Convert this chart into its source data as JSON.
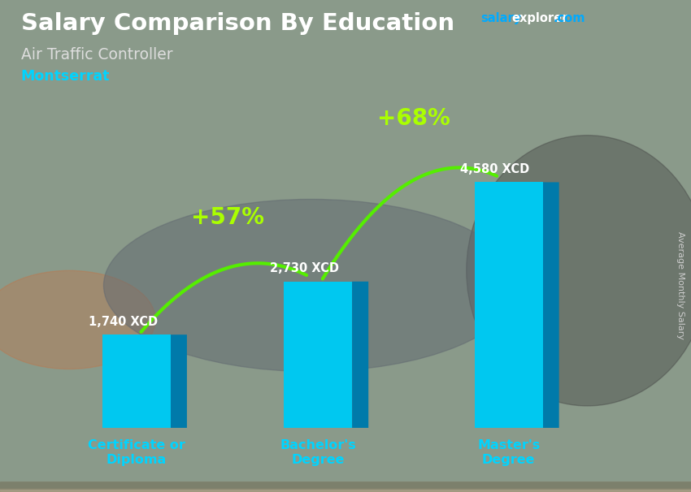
{
  "title": "Salary Comparison By Education",
  "subtitle": "Air Traffic Controller",
  "location": "Montserrat",
  "location_color": "#00d4ff",
  "categories": [
    "Certificate or\nDiploma",
    "Bachelor's\nDegree",
    "Master's\nDegree"
  ],
  "values": [
    1740,
    2730,
    4580
  ],
  "value_labels": [
    "1,740 XCD",
    "2,730 XCD",
    "4,580 XCD"
  ],
  "pct_labels": [
    "+57%",
    "+68%"
  ],
  "bar_color_face": "#00c8f0",
  "bar_color_side": "#007aaa",
  "bar_color_top": "#40deff",
  "arrow_color": "#55ee00",
  "pct_color": "#aaff00",
  "title_color": "#ffffff",
  "subtitle_color": "#dddddd",
  "salary_label_color": "#ffffff",
  "xlabel_color": "#00d4ff",
  "bg_color_top": "#8a9a8a",
  "bg_color_bottom": "#5a6a5a",
  "side_label": "Average Monthly Salary",
  "ylim": [
    0,
    5500
  ],
  "bar_positions": [
    1.0,
    3.0,
    5.1
  ],
  "bar_width": 0.75
}
